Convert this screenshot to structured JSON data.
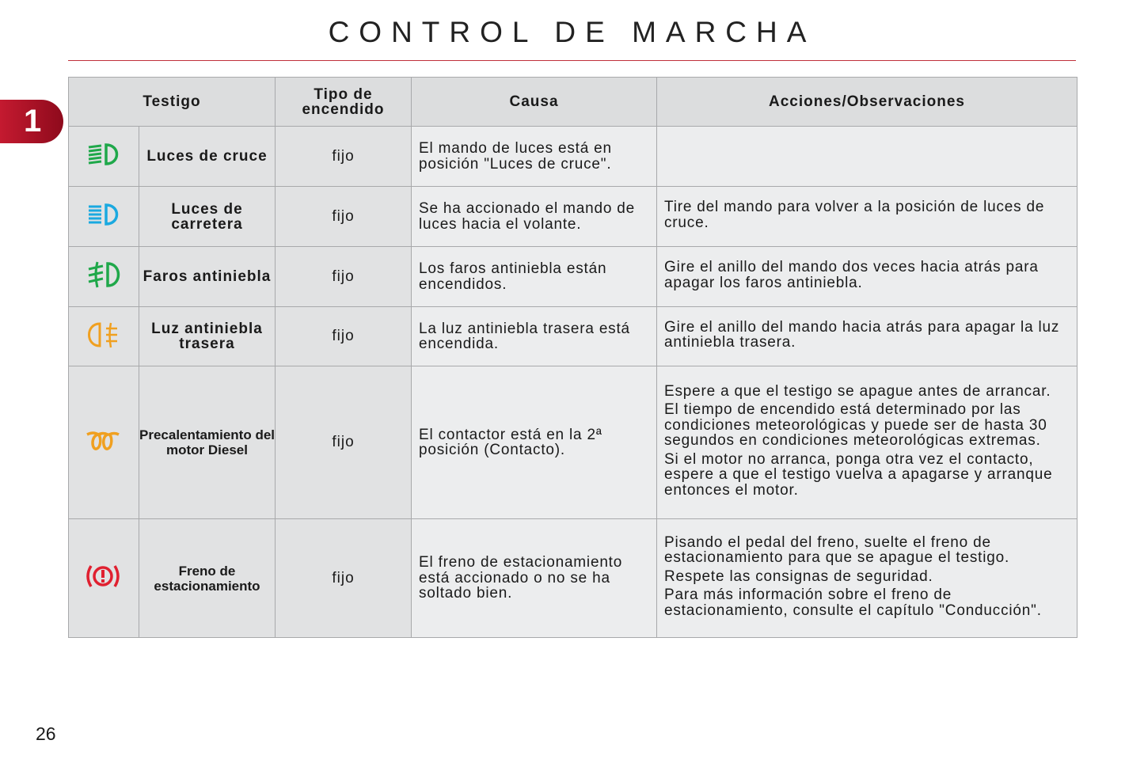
{
  "title": "CONTROL DE MARCHA",
  "chapter": "1",
  "page_number": "26",
  "headers": {
    "testigo": "Testigo",
    "tipo": "Tipo de encendido",
    "causa": "Causa",
    "acciones": "Acciones/Observaciones"
  },
  "rows": [
    {
      "icon": "low-beam-icon",
      "color": "#1fa84a",
      "name": "Luces de cruce",
      "tipo": "fijo",
      "causa": "El mando de luces está en posición \"Luces de cruce\".",
      "acciones": []
    },
    {
      "icon": "high-beam-icon",
      "color": "#1aa9e0",
      "name": "Luces de carretera",
      "tipo": "fijo",
      "causa": "Se ha accionado el mando de luces hacia el volante.",
      "acciones": [
        "Tire del mando para volver a la posición de luces de cruce."
      ]
    },
    {
      "icon": "front-fog-light-icon",
      "color": "#1fa84a",
      "name": "Faros antiniebla",
      "tipo": "fijo",
      "causa": "Los faros antiniebla están encendidos.",
      "acciones": [
        "Gire el anillo del mando dos veces hacia atrás para apagar los faros antiniebla."
      ]
    },
    {
      "icon": "rear-fog-light-icon",
      "color": "#f0a020",
      "name": "Luz antiniebla trasera",
      "tipo": "fijo",
      "causa": "La luz antiniebla trasera está encendida.",
      "acciones": [
        "Gire el anillo del mando hacia atrás para apagar la luz antiniebla trasera."
      ]
    },
    {
      "icon": "glow-plug-icon",
      "color": "#f0a020",
      "name": "Precalentamiento del motor Diesel",
      "tipo": "fijo",
      "causa": "El contactor está en la 2ª posición (Contacto).",
      "acciones": [
        "Espere a que el testigo se apague antes de arrancar.",
        "El tiempo de encendido está determinado por las condiciones meteorológicas y puede ser de hasta 30 segundos en condiciones meteorológicas extremas.",
        "Si el motor no arranca, ponga otra vez el contacto, espere a que el testigo vuelva a apagarse y arranque entonces el motor."
      ]
    },
    {
      "icon": "parking-brake-icon",
      "color": "#e02030",
      "name": "Freno de estacionamiento",
      "tipo": "fijo",
      "causa": "El freno de estacionamiento está accionado o no se ha soltado bien.",
      "acciones": [
        "Pisando el pedal del freno, suelte el freno de estacionamiento para que se apague el testigo.",
        "Respete las consignas de seguridad.",
        "Para más información sobre el freno de estacionamiento, consulte el capítulo \"Conducción\"."
      ]
    }
  ]
}
